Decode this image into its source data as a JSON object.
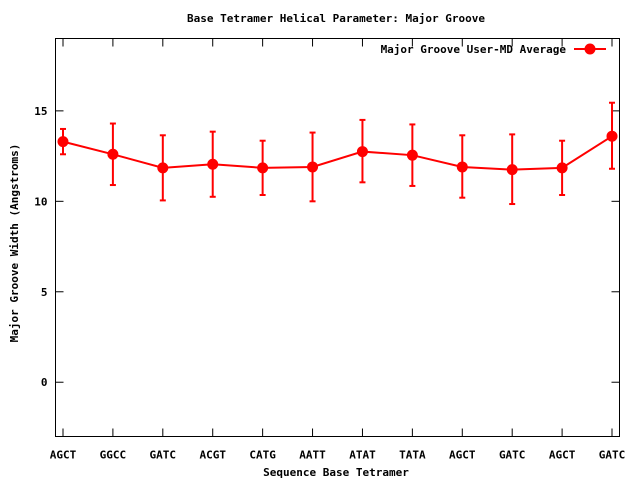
{
  "chart_data": {
    "type": "line",
    "title": "Base Tetramer Helical Parameter: Major Groove",
    "xlabel": "Sequence Base Tetramer",
    "ylabel": "Major Groove Width (Angstroms)",
    "ylim": [
      -3,
      19
    ],
    "yticks": [
      0,
      5,
      10,
      15
    ],
    "grid": false,
    "legend_position": "top-right",
    "categories": [
      "AGCT",
      "GGCC",
      "GATC",
      "ACGT",
      "CATG",
      "AATT",
      "ATAT",
      "TATA",
      "AGCT",
      "GATC",
      "AGCT",
      "GATC"
    ],
    "series": [
      {
        "name": "Major Groove User-MD Average",
        "color": "#ff0000",
        "values": [
          13.3,
          12.6,
          11.85,
          12.05,
          11.85,
          11.9,
          12.75,
          12.55,
          11.9,
          11.75,
          11.85,
          13.6
        ],
        "error_low": [
          12.6,
          10.9,
          10.05,
          10.25,
          10.35,
          10.0,
          11.05,
          10.85,
          10.2,
          9.85,
          10.35,
          11.8
        ],
        "error_high": [
          14.0,
          14.3,
          13.65,
          13.85,
          13.35,
          13.8,
          14.5,
          14.25,
          13.65,
          13.7,
          13.35,
          15.45
        ]
      }
    ]
  }
}
